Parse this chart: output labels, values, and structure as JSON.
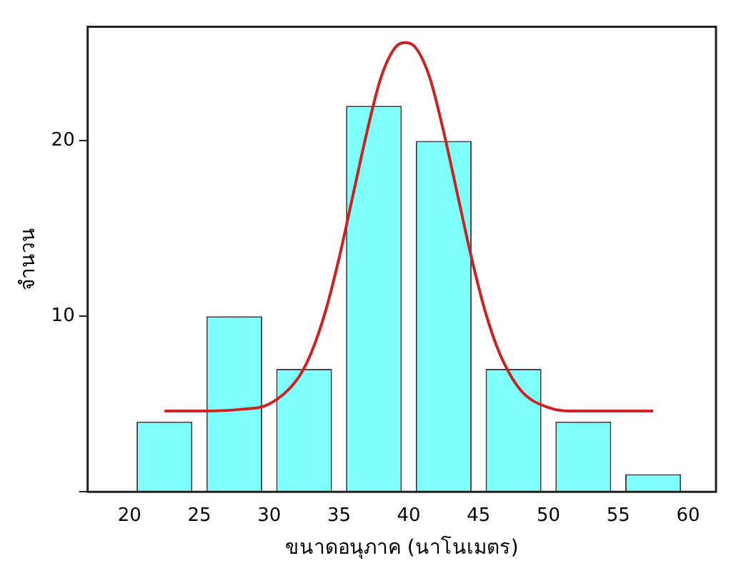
{
  "chart_data": {
    "type": "histogram",
    "xlabel": "ขนาดอนุภาค (นาโนเมตร)",
    "ylabel": "จำนวน",
    "bins": [
      20,
      25,
      30,
      35,
      40,
      45,
      50,
      55,
      60
    ],
    "values": [
      4,
      10,
      7,
      22,
      20,
      7,
      4,
      1
    ],
    "color": "#80ffff",
    "series": [
      {
        "type": "line",
        "color": "#cc2222",
        "x": [
          22.5,
          25,
          28,
          30,
          32,
          33,
          34,
          35,
          36,
          37,
          38,
          39,
          39.7,
          40.5,
          41.5,
          42.5,
          43.5,
          44.5,
          45.5,
          46.5,
          48,
          50,
          52,
          55,
          57.5
        ],
        "values": [
          4.6,
          4.6,
          4.7,
          5.0,
          6.4,
          7.9,
          10.2,
          13.3,
          16.9,
          20.5,
          23.6,
          25.3,
          25.6,
          25.3,
          23.6,
          20.5,
          16.9,
          13.3,
          10.2,
          7.9,
          5.8,
          4.8,
          4.6,
          4.6,
          4.6
        ]
      }
    ],
    "xlim": [
      17,
      62
    ],
    "xticks": [
      20,
      25,
      30,
      35,
      40,
      45,
      50,
      55,
      60
    ],
    "ylim": [
      0,
      26.5
    ],
    "yticks": [
      {
        "value": 0,
        "label": null
      },
      10,
      20
    ],
    "grid": false,
    "legend": false
  }
}
